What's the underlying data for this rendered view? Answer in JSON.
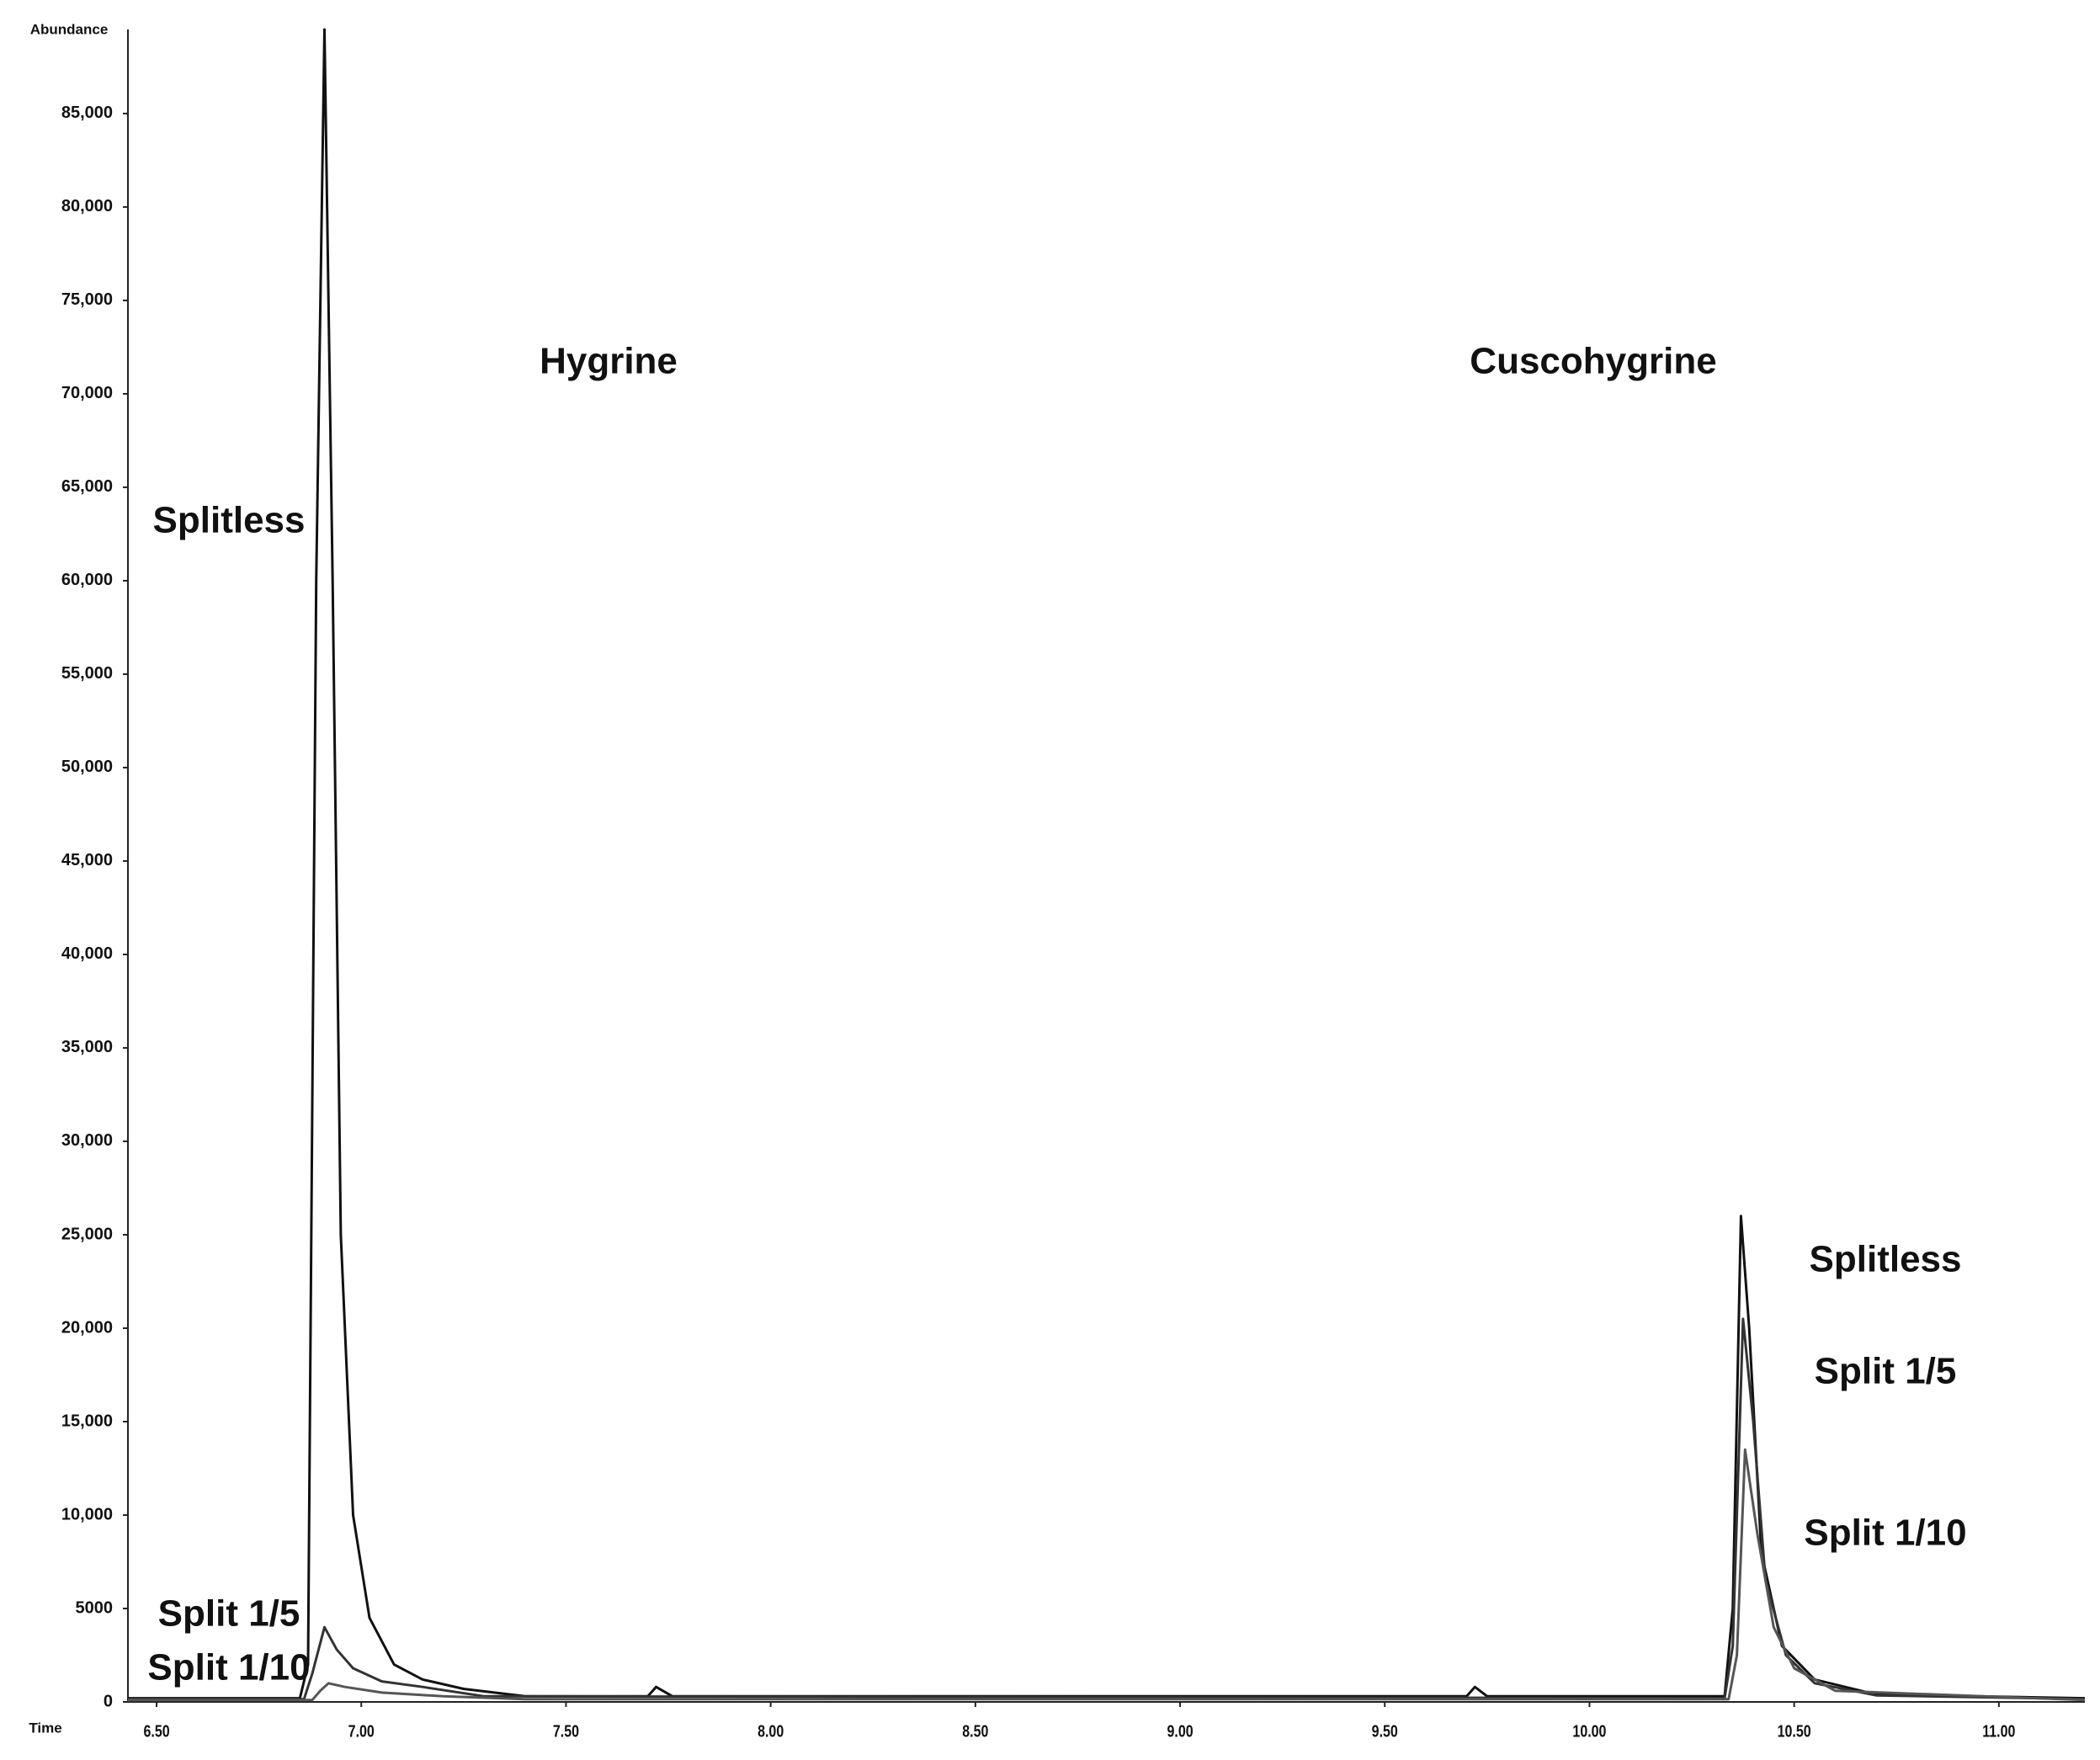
{
  "chart_data": {
    "type": "line",
    "y_label": "Abundance",
    "x_label": "Time",
    "annotations": [
      "Hygrine",
      "Cuscohygrine",
      "Splitless",
      "Split 1/5",
      "Split 1/10"
    ],
    "xlim": [
      6.43,
      11.21
    ],
    "ylim": [
      0,
      89500
    ],
    "xticks": [
      {
        "value": 6.5,
        "label": "6.50"
      },
      {
        "value": 7,
        "label": "7.00"
      },
      {
        "value": 7.5,
        "label": "7.50"
      },
      {
        "value": 8,
        "label": "8.00"
      },
      {
        "value": 8.5,
        "label": "8.50"
      },
      {
        "value": 9,
        "label": "9.00"
      },
      {
        "value": 9.5,
        "label": "9.50"
      },
      {
        "value": 10,
        "label": "10.00"
      },
      {
        "value": 10.5,
        "label": "10.50"
      },
      {
        "value": 11,
        "label": "11.00"
      }
    ],
    "yticks": [
      0,
      5000,
      {
        "value": 10000,
        "label": "10,000"
      },
      {
        "value": 15000,
        "label": "15,000"
      },
      {
        "value": 20000,
        "label": "20,000"
      },
      {
        "value": 25000,
        "label": "25,000"
      },
      {
        "value": 30000,
        "label": "30,000"
      },
      {
        "value": 35000,
        "label": "35,000"
      },
      {
        "value": 40000,
        "label": "40,000"
      },
      {
        "value": 45000,
        "label": "45,000"
      },
      {
        "value": 50000,
        "label": "50,000"
      },
      {
        "value": 55000,
        "label": "55,000"
      },
      {
        "value": 60000,
        "label": "60,000"
      },
      {
        "value": 65000,
        "label": "65,000"
      },
      {
        "value": 70000,
        "label": "70,000"
      },
      {
        "value": 75000,
        "label": "75,000"
      },
      {
        "value": 80000,
        "label": "80,000"
      },
      {
        "value": 85000,
        "label": "85,000"
      }
    ],
    "series": [
      {
        "name": "Splitless",
        "color": "#111111",
        "x": [
          6.43,
          6.85,
          6.87,
          6.89,
          6.91,
          6.93,
          6.95,
          6.98,
          7.02,
          7.08,
          7.15,
          7.25,
          7.4,
          7.7,
          7.72,
          7.76,
          8.75,
          9.7,
          9.72,
          9.75,
          10.33,
          10.35,
          10.37,
          10.39,
          10.42,
          10.47,
          10.55,
          10.7,
          11.21
        ],
        "values": [
          200,
          200,
          2000,
          60000,
          89500,
          60000,
          25000,
          10000,
          4500,
          2000,
          1200,
          700,
          300,
          300,
          800,
          300,
          300,
          300,
          800,
          300,
          300,
          5000,
          26000,
          20000,
          8000,
          3000,
          1200,
          400,
          200
        ]
      },
      {
        "name": "Split 1/5",
        "color": "#333333",
        "x": [
          6.43,
          6.86,
          6.88,
          6.91,
          6.94,
          6.98,
          7.05,
          7.15,
          7.3,
          10.33,
          10.35,
          10.375,
          10.4,
          10.43,
          10.48,
          10.55,
          10.7,
          11.21
        ],
        "values": [
          150,
          150,
          1500,
          4000,
          2800,
          1800,
          1100,
          800,
          300,
          200,
          3000,
          20500,
          15000,
          6500,
          2500,
          1000,
          350,
          150
        ]
      },
      {
        "name": "Split 1/10",
        "color": "#555555",
        "x": [
          6.43,
          6.88,
          6.9,
          6.92,
          6.96,
          7.05,
          7.2,
          7.4,
          10.34,
          10.36,
          10.38,
          10.41,
          10.45,
          10.5,
          10.6,
          11.21
        ],
        "values": [
          100,
          100,
          600,
          1000,
          800,
          500,
          300,
          150,
          150,
          2500,
          13500,
          9000,
          4000,
          1800,
          600,
          100
        ]
      }
    ]
  }
}
